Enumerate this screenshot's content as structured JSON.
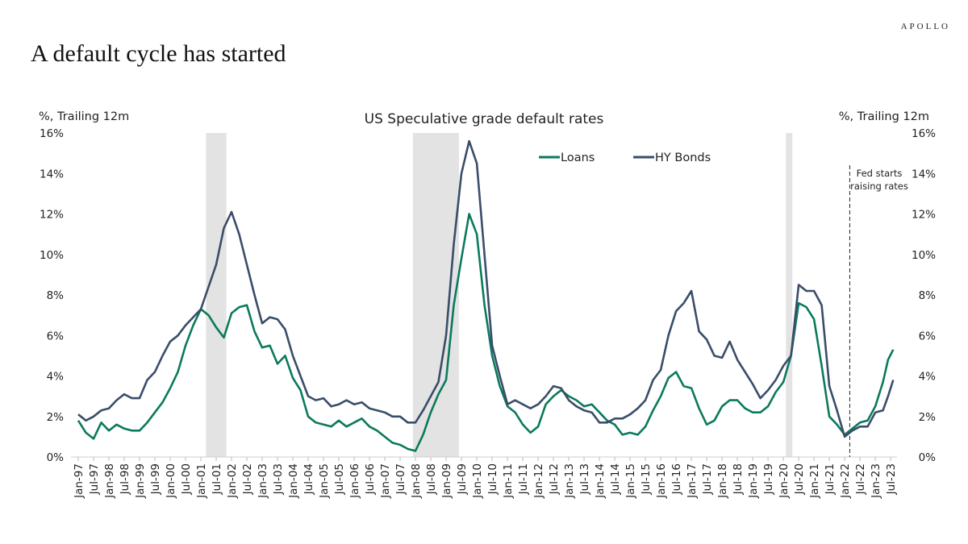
{
  "brand": "APOLLO",
  "page_title": "A default cycle has started",
  "chart_data": {
    "type": "line",
    "title": "US Speculative grade default rates",
    "ylabel_left": "%, Trailing 12m",
    "ylabel_right": "%, Trailing 12m",
    "ylim": [
      0,
      16
    ],
    "y_ticks": [
      "0%",
      "2%",
      "4%",
      "6%",
      "8%",
      "10%",
      "12%",
      "14%",
      "16%"
    ],
    "y_tick_values": [
      0,
      2,
      4,
      6,
      8,
      10,
      12,
      14,
      16
    ],
    "x_range": [
      "1997-01",
      "2023-08"
    ],
    "x_tick_labels": [
      "Jan-97",
      "Jul-97",
      "Jan-98",
      "Jul-98",
      "Jan-99",
      "Jul-99",
      "Jan-00",
      "Jul-00",
      "Jan-01",
      "Jul-01",
      "Jan-02",
      "Jul-02",
      "Jan-03",
      "Jul-03",
      "Jan-04",
      "Jul-04",
      "Jan-05",
      "Jul-05",
      "Jan-06",
      "Jul-06",
      "Jan-07",
      "Jul-07",
      "Jan-08",
      "Jul-08",
      "Jan-09",
      "Jul-09",
      "Jan-10",
      "Jul-10",
      "Jan-11",
      "Jul-11",
      "Jan-12",
      "Jul-12",
      "Jan-13",
      "Jul-13",
      "Jan-14",
      "Jul-14",
      "Jan-15",
      "Jul-15",
      "Jan-16",
      "Jul-16",
      "Jan-17",
      "Jul-17",
      "Jan-18",
      "Jul-18",
      "Jan-19",
      "Jul-19",
      "Jan-20",
      "Jul-20",
      "Jan-21",
      "Jul-21",
      "Jan-22",
      "Jul-22",
      "Jan-23",
      "Jul-23"
    ],
    "legend": {
      "placement": "top-center"
    },
    "grid": false,
    "recessions": [
      [
        "2001-03",
        "2001-11"
      ],
      [
        "2007-12",
        "2009-06"
      ],
      [
        "2020-02",
        "2020-04"
      ]
    ],
    "annotation": {
      "date": "2022-03",
      "lines": [
        "Fed starts",
        "raising rates"
      ]
    },
    "x": [
      "1997-01",
      "1997-04",
      "1997-07",
      "1997-10",
      "1998-01",
      "1998-04",
      "1998-07",
      "1998-10",
      "1999-01",
      "1999-04",
      "1999-07",
      "1999-10",
      "2000-01",
      "2000-04",
      "2000-07",
      "2000-10",
      "2001-01",
      "2001-04",
      "2001-07",
      "2001-10",
      "2002-01",
      "2002-04",
      "2002-07",
      "2002-10",
      "2003-01",
      "2003-04",
      "2003-07",
      "2003-10",
      "2004-01",
      "2004-04",
      "2004-07",
      "2004-10",
      "2005-01",
      "2005-04",
      "2005-07",
      "2005-10",
      "2006-01",
      "2006-04",
      "2006-07",
      "2006-10",
      "2007-01",
      "2007-04",
      "2007-07",
      "2007-10",
      "2008-01",
      "2008-04",
      "2008-07",
      "2008-10",
      "2009-01",
      "2009-04",
      "2009-07",
      "2009-10",
      "2010-01",
      "2010-04",
      "2010-07",
      "2010-10",
      "2011-01",
      "2011-04",
      "2011-07",
      "2011-10",
      "2012-01",
      "2012-04",
      "2012-07",
      "2012-10",
      "2013-01",
      "2013-04",
      "2013-07",
      "2013-10",
      "2014-01",
      "2014-04",
      "2014-07",
      "2014-10",
      "2015-01",
      "2015-04",
      "2015-07",
      "2015-10",
      "2016-01",
      "2016-04",
      "2016-07",
      "2016-10",
      "2017-01",
      "2017-04",
      "2017-07",
      "2017-10",
      "2018-01",
      "2018-04",
      "2018-07",
      "2018-10",
      "2019-01",
      "2019-04",
      "2019-07",
      "2019-10",
      "2020-01",
      "2020-04",
      "2020-07",
      "2020-10",
      "2021-01",
      "2021-04",
      "2021-07",
      "2021-10",
      "2022-01",
      "2022-04",
      "2022-07",
      "2022-10",
      "2023-01",
      "2023-04",
      "2023-06",
      "2023-08"
    ],
    "series": [
      {
        "name": "Loans",
        "color": "#0b7a5c",
        "values": [
          1.8,
          1.2,
          0.9,
          1.7,
          1.3,
          1.6,
          1.4,
          1.3,
          1.3,
          1.7,
          2.2,
          2.7,
          3.4,
          4.2,
          5.5,
          6.5,
          7.3,
          7.0,
          6.4,
          5.9,
          7.1,
          7.4,
          7.5,
          6.2,
          5.4,
          5.5,
          4.6,
          5.0,
          3.9,
          3.3,
          2.0,
          1.7,
          1.6,
          1.5,
          1.8,
          1.5,
          1.7,
          1.9,
          1.5,
          1.3,
          1.0,
          0.7,
          0.6,
          0.4,
          0.3,
          1.1,
          2.2,
          3.1,
          3.8,
          7.5,
          9.8,
          12.0,
          11.0,
          7.5,
          5.0,
          3.5,
          2.5,
          2.2,
          1.6,
          1.2,
          1.5,
          2.6,
          3.0,
          3.3,
          3.0,
          2.8,
          2.5,
          2.6,
          2.2,
          1.8,
          1.6,
          1.1,
          1.2,
          1.1,
          1.5,
          2.3,
          3.0,
          3.9,
          4.2,
          3.5,
          3.4,
          2.4,
          1.6,
          1.8,
          2.5,
          2.8,
          2.8,
          2.4,
          2.2,
          2.2,
          2.5,
          3.2,
          3.7,
          5.0,
          7.6,
          7.4,
          6.8,
          4.5,
          2.0,
          1.6,
          1.1,
          1.4,
          1.7,
          1.8,
          2.5,
          3.7,
          4.8,
          5.3
        ]
      },
      {
        "name": "HY Bonds",
        "color": "#3a4d69",
        "values": [
          2.1,
          1.8,
          2.0,
          2.3,
          2.4,
          2.8,
          3.1,
          2.9,
          2.9,
          3.8,
          4.2,
          5.0,
          5.7,
          6.0,
          6.5,
          6.9,
          7.3,
          8.4,
          9.5,
          11.3,
          12.1,
          11.0,
          9.5,
          8.0,
          6.6,
          6.9,
          6.8,
          6.3,
          5.0,
          4.0,
          3.0,
          2.8,
          2.9,
          2.5,
          2.6,
          2.8,
          2.6,
          2.7,
          2.4,
          2.3,
          2.2,
          2.0,
          2.0,
          1.7,
          1.7,
          2.3,
          3.0,
          3.7,
          6.0,
          10.5,
          14.0,
          15.6,
          14.5,
          10.0,
          5.5,
          4.0,
          2.6,
          2.8,
          2.6,
          2.4,
          2.6,
          3.0,
          3.5,
          3.4,
          2.8,
          2.5,
          2.3,
          2.2,
          1.7,
          1.7,
          1.9,
          1.9,
          2.1,
          2.4,
          2.8,
          3.8,
          4.3,
          6.0,
          7.2,
          7.6,
          8.2,
          6.2,
          5.8,
          5.0,
          4.9,
          5.7,
          4.8,
          4.2,
          3.6,
          2.9,
          3.3,
          3.8,
          4.5,
          5.0,
          8.5,
          8.2,
          8.2,
          7.5,
          3.5,
          2.3,
          1.0,
          1.3,
          1.5,
          1.5,
          2.2,
          2.3,
          3.0,
          3.8
        ]
      }
    ]
  }
}
